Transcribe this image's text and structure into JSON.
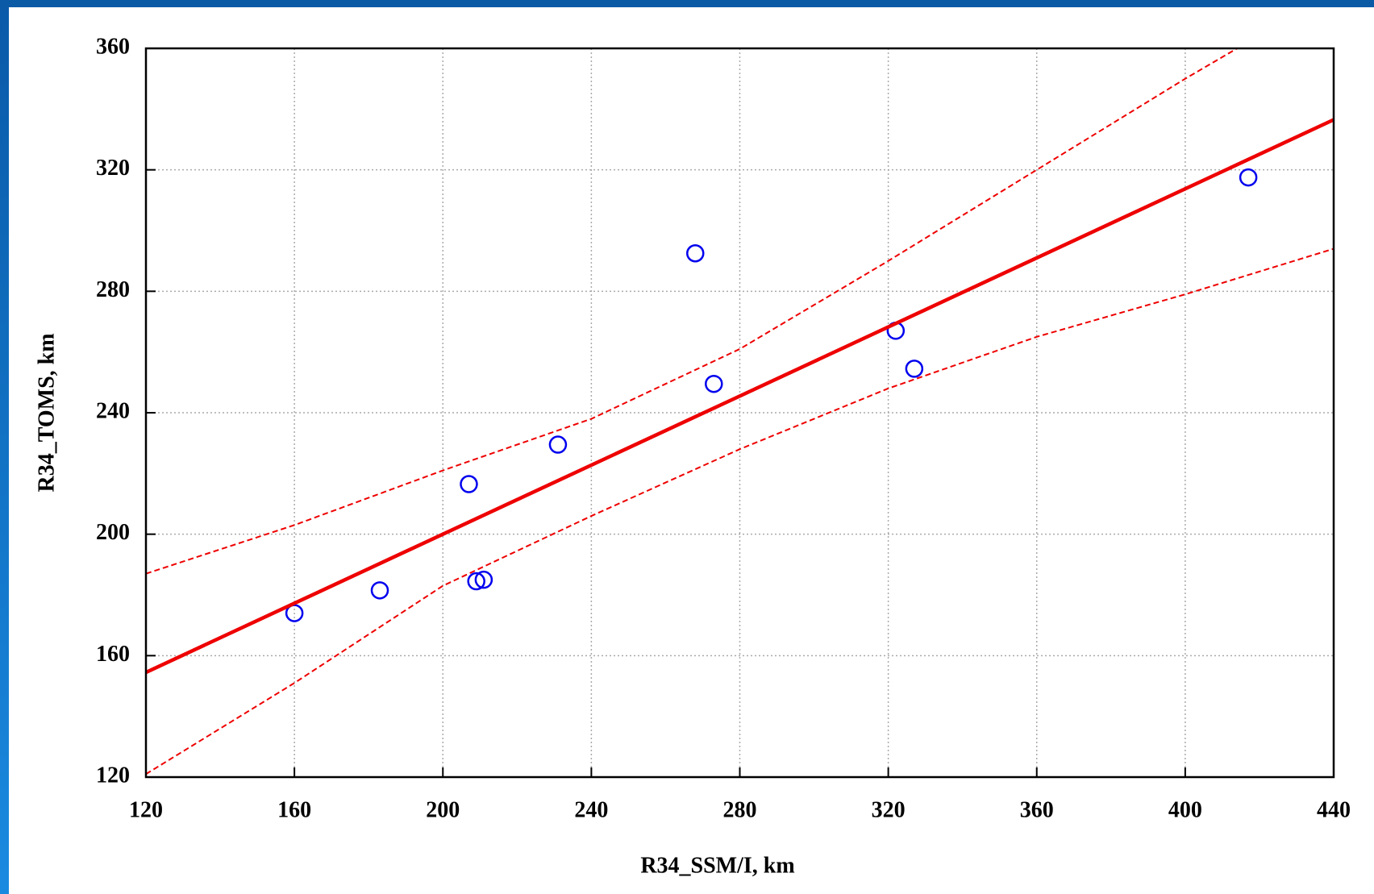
{
  "chart_data": {
    "type": "scatter",
    "xlabel": "R34_SSM/I, km",
    "ylabel": "R34_TOMS, km",
    "xlim": [
      120,
      440
    ],
    "xticks": [
      120,
      160,
      200,
      240,
      280,
      320,
      360,
      400,
      440
    ],
    "ylim": [
      120,
      360
    ],
    "yticks": [
      120,
      160,
      200,
      240,
      280,
      320,
      360
    ],
    "grid": true,
    "series": [
      {
        "mode": "markers",
        "color": "#0000ee",
        "x": [
          160,
          183,
          207,
          209,
          211,
          231,
          268,
          273,
          322,
          327,
          417
        ],
        "values": [
          174,
          181.5,
          216.5,
          184.5,
          185,
          229.5,
          292.5,
          249.5,
          267,
          254.5,
          317.5
        ]
      },
      {
        "mode": "line",
        "style": "solid",
        "color": "#ee0000",
        "x": [
          120,
          440
        ],
        "values": [
          154.5,
          336.5
        ]
      },
      {
        "mode": "line",
        "style": "dashed",
        "color": "#ee0000",
        "x": [
          120,
          160,
          200,
          240,
          280,
          320,
          360,
          400,
          414
        ],
        "values": [
          187,
          203,
          221,
          238,
          261,
          290,
          320,
          350,
          360
        ]
      },
      {
        "mode": "line",
        "style": "dashed",
        "color": "#ee0000",
        "x": [
          120,
          160,
          200,
          240,
          280,
          320,
          360,
          400,
          440
        ],
        "values": [
          121,
          151,
          183,
          206,
          228,
          248,
          265,
          279,
          294
        ]
      }
    ]
  }
}
